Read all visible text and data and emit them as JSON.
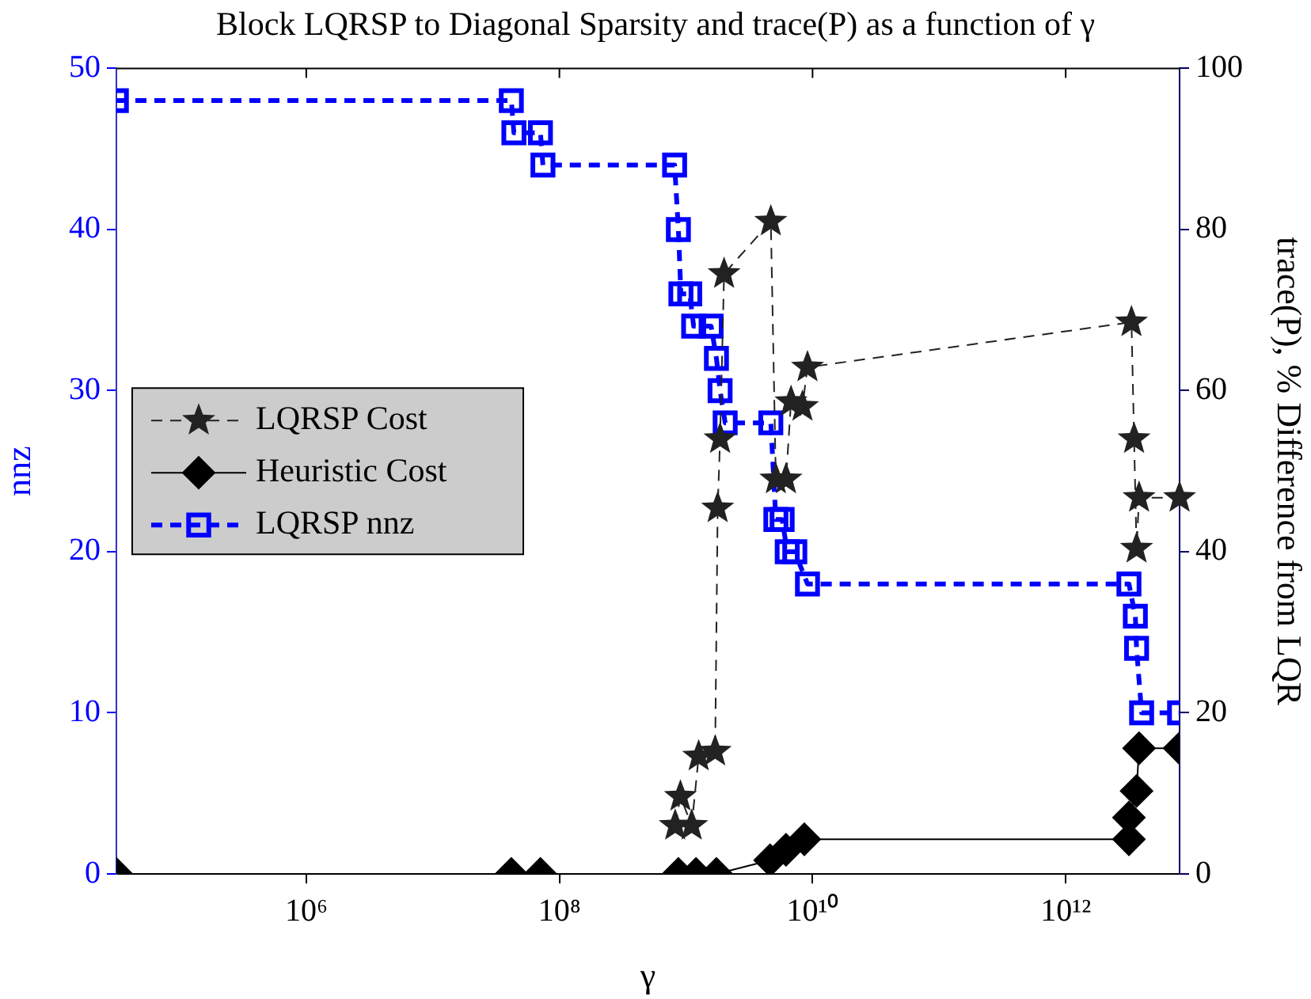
{
  "chart_data": {
    "type": "line",
    "title": "Block LQRSP to Diagonal Sparsity and trace(P) as a function of γ",
    "xlabel": "γ",
    "ylabel": "nnz",
    "y2label": "trace(P), % Difference from LQR",
    "log": "x",
    "xlim": [
      31600,
      7940000000000.0
    ],
    "xticks": [
      {
        "value": 1000000.0,
        "label": "10⁶"
      },
      {
        "value": 100000000.0,
        "label": "10⁸"
      },
      {
        "value": 10000000000.0,
        "label": "10¹⁰"
      },
      {
        "value": 1000000000000.0,
        "label": "10¹²"
      }
    ],
    "ylim": [
      0,
      50
    ],
    "yticks": [
      0,
      10,
      20,
      30,
      40,
      50
    ],
    "y2lim": [
      0,
      100
    ],
    "y2ticks": [
      0,
      20,
      40,
      60,
      80,
      100
    ],
    "grid": false,
    "legend": "left",
    "series": [
      {
        "name": "LQRSP Cost",
        "color": "#222222",
        "axis": "y2",
        "marker": "star",
        "line_style": "dashed",
        "x": [
          822000000.0,
          904000000.0,
          1110000000.0,
          1260000000.0,
          1700000000.0,
          1780000000.0,
          1860000000.0,
          2000000000.0,
          4680000000.0,
          5130000000.0,
          6170000000.0,
          6760000000.0,
          8320000000.0,
          9120000000.0,
          3310000000000.0,
          3470000000000.0,
          3630000000000.0,
          3800000000000.0,
          7940000000000.0
        ],
        "values": [
          6,
          9.6,
          6,
          14.6,
          15.2,
          45.4,
          54,
          74.5,
          81,
          49,
          49,
          58.6,
          58,
          62.9,
          68.5,
          54,
          40.4,
          46.7,
          46.7
        ]
      },
      {
        "name": "Heuristic Cost",
        "color": "#000000",
        "axis": "y2",
        "marker": "diamond",
        "line_style": "solid",
        "x": [
          31600,
          41700000.0,
          70800000.0,
          871000000.0,
          1200000000.0,
          1740000000.0,
          4620000000.0,
          6170000000.0,
          8610000000.0,
          3160000000000.0,
          3160000000000.0,
          3630000000000.0,
          3800000000000.0,
          7940000000000.0
        ],
        "values": [
          0,
          0,
          0,
          0,
          0,
          0,
          1.7,
          3,
          4.3,
          4.3,
          7,
          10.3,
          15.6,
          15.6
        ]
      },
      {
        "name": "LQRSP nnz",
        "color": "#0000ff",
        "marker": "square",
        "line_style": "dashed",
        "x": [
          31600,
          41700000.0,
          43700000.0,
          70800000.0,
          74100000.0,
          813000000.0,
          871000000.0,
          912000000.0,
          1070000000.0,
          1150000000.0,
          1580000000.0,
          1740000000.0,
          1860000000.0,
          2040000000.0,
          4680000000.0,
          5130000000.0,
          5750000000.0,
          6310000000.0,
          7240000000.0,
          9120000000.0,
          3160000000000.0,
          3550000000000.0,
          3630000000000.0,
          3980000000000.0,
          7940000000000.0
        ],
        "values": [
          48,
          48,
          46,
          46,
          44,
          44,
          40,
          36,
          36,
          34,
          34,
          32,
          30,
          28,
          28,
          22,
          22,
          20,
          20,
          18,
          18,
          16,
          14,
          10,
          10
        ]
      }
    ]
  }
}
